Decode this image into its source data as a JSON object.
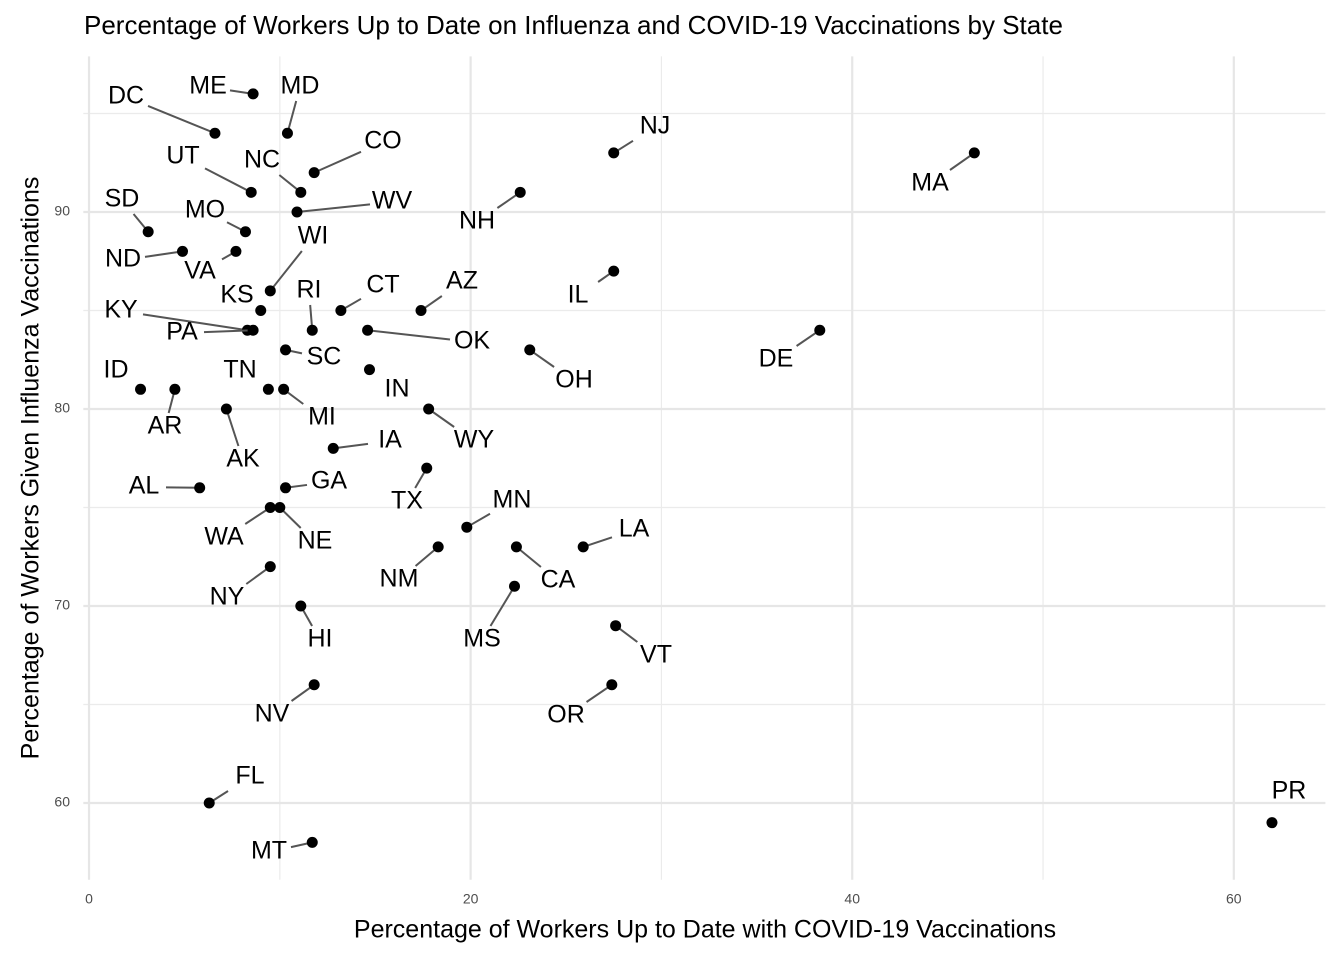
{
  "chart_data": {
    "type": "scatter",
    "title": "Percentage of Workers Up to Date on Influenza and COVID-19 Vaccinations by State",
    "x_label": "Percentage of Workers Up to Date with COVID-19 Vaccinations",
    "y_label": "Percentage of Workers Given Influenza Vaccinations",
    "color": "#000000",
    "labels": [
      "ME",
      "DC",
      "MD",
      "CO",
      "NJ",
      "MA",
      "UT",
      "NC",
      "NH",
      "WV",
      "SD",
      "MO",
      "ND",
      "VA",
      "WI",
      "IL",
      "KS",
      "CT",
      "AZ",
      "KY",
      "PA",
      "RI",
      "OK",
      "DE",
      "SC",
      "OH",
      "IN",
      "ID",
      "AR",
      "TN",
      "MI",
      "AK",
      "WY",
      "IA",
      "TX",
      "AL",
      "GA",
      "WA",
      "NE",
      "MN",
      "NM",
      "CA",
      "LA",
      "NY",
      "MS",
      "HI",
      "VT",
      "NV",
      "OR",
      "FL",
      "MT",
      "PR"
    ],
    "x": [
      8.6,
      6.6,
      10.4,
      11.8,
      27.5,
      46.4,
      8.5,
      11.1,
      22.6,
      10.9,
      3.1,
      8.2,
      4.9,
      7.7,
      9.5,
      27.5,
      9.0,
      13.2,
      17.4,
      8.3,
      8.6,
      11.7,
      14.6,
      38.3,
      10.3,
      23.1,
      14.7,
      2.7,
      4.5,
      9.4,
      10.2,
      7.2,
      17.8,
      12.8,
      17.7,
      5.8,
      10.3,
      9.5,
      10.0,
      19.8,
      18.3,
      22.4,
      25.9,
      9.5,
      22.3,
      11.1,
      27.6,
      11.8,
      27.4,
      6.3,
      11.7,
      62.0
    ],
    "values": [
      96,
      94,
      94,
      92,
      93,
      93,
      91,
      91,
      91,
      90,
      89,
      89,
      88,
      88,
      86,
      87,
      85,
      85,
      85,
      84,
      84,
      84,
      84,
      84,
      83,
      83,
      82,
      81,
      81,
      81,
      81,
      80,
      80,
      78,
      77,
      76,
      76,
      75,
      75,
      74,
      73,
      73,
      73,
      72,
      71,
      70,
      69,
      66,
      66,
      60,
      58,
      59
    ],
    "xlim": [
      -0.3,
      64.8
    ],
    "ylim": [
      56.1,
      97.9
    ],
    "xticks": [
      0,
      20,
      40,
      60
    ],
    "yticks": [
      60,
      70,
      80,
      90
    ],
    "x_minor_grid": [
      10,
      30,
      50
    ],
    "y_minor_grid": [
      65,
      75,
      85,
      95
    ],
    "grid": true
  }
}
